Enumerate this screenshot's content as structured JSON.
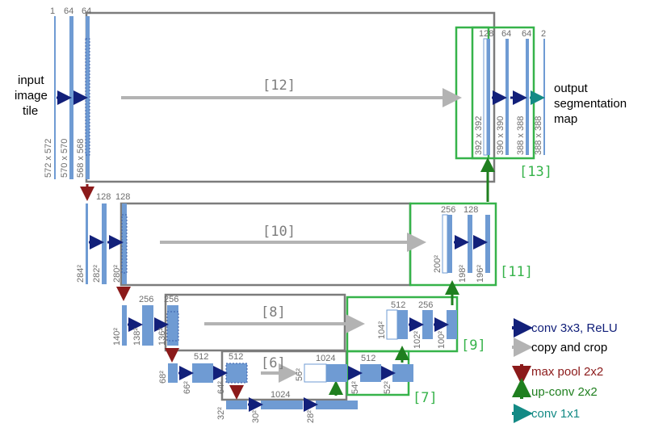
{
  "input_label": [
    "input",
    "image",
    "tile"
  ],
  "output_label": [
    "output",
    "segmentation",
    "map"
  ],
  "channels": {
    "c1": "1",
    "c64a": "64",
    "c64b": "64",
    "c128a": "128",
    "c128b": "128",
    "c256a": "256",
    "c256b": "256",
    "c512a": "512",
    "c512b": "512",
    "c1024a": "1024",
    "c1024b": "1024",
    "d512a": "512",
    "d512b": "512",
    "d256a": "256",
    "d256b": "256",
    "d128a": "128",
    "d128b": "128",
    "d64a": "64",
    "d64b": "64",
    "d2": "2"
  },
  "sizes": {
    "s572": "572 x 572",
    "s570": "570 x 570",
    "s568": "568 x 568",
    "s284": "284²",
    "s282": "282²",
    "s280": "280²",
    "s140": "140²",
    "s138": "138²",
    "s136": "136²",
    "s68": "68²",
    "s66": "66²",
    "s64": "64²",
    "s32": "32²",
    "s30": "30²",
    "s28": "28²",
    "s56": "56²",
    "s54": "54²",
    "s52": "52²",
    "s104": "104²",
    "s102": "102²",
    "s100": "100²",
    "s200": "200²",
    "s198": "198²",
    "s196": "196²",
    "s392": "392 x 392",
    "s390": "390 x 390",
    "s388a": "388 x 388",
    "s388b": "388 x 388"
  },
  "tags": {
    "t12": "[12]",
    "t10": "[10]",
    "t8": "[8]",
    "t6": "[6]",
    "t13": "[13]",
    "t11": "[11]",
    "t9": "[9]",
    "t7": "[7]"
  },
  "legend": {
    "conv": "conv 3x3, ReLU",
    "copy": "copy and crop",
    "pool": "max pool 2x2",
    "upconv": "up-conv 2x2",
    "conv1": "conv 1x1"
  },
  "colors": {
    "feature_map": "#6f9bd3",
    "conv_arrow": "#12207a",
    "copy_arrow": "#b3b3b3",
    "pool_arrow": "#8b1a1a",
    "upconv_arrow": "#1f7f1f",
    "conv1_arrow": "#138a85",
    "green_box": "#36b34a",
    "gray_box": "#7c7c7c"
  }
}
